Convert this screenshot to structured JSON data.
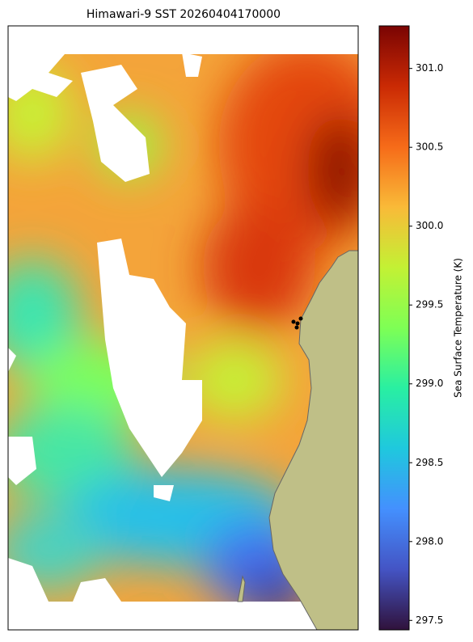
{
  "chart_data": {
    "type": "map",
    "title": "Himawari-9 SST 20260404170000",
    "colorbar": {
      "label": "Sea Surface Temperature (K)",
      "colormap": "turbo",
      "clim": [
        297.44,
        301.27
      ],
      "ticks": [
        297.5,
        {
          "value": 298,
          "label": "298.0"
        },
        298.5,
        {
          "value": 299,
          "label": "299.0"
        },
        299.5,
        {
          "value": 300,
          "label": "300.0"
        },
        300.5,
        {
          "value": 301,
          "label": "301.0"
        }
      ]
    }
  }
}
